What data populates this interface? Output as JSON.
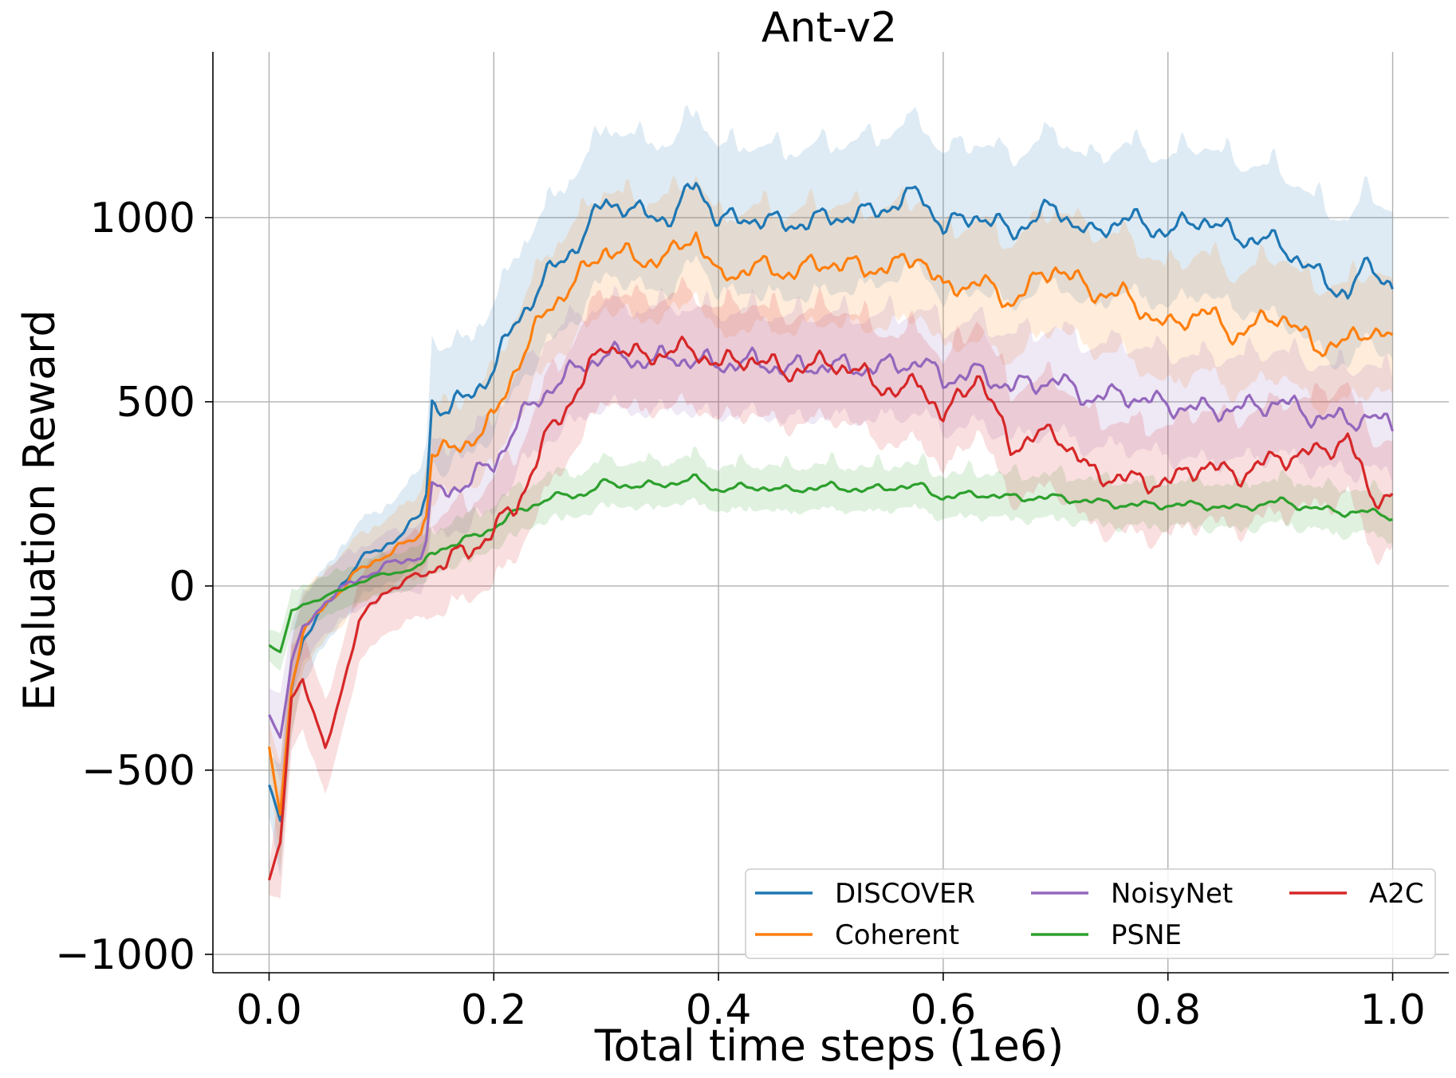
{
  "chart_data": {
    "type": "line",
    "title": "Ant-v2",
    "xlabel": "Total time steps (1e6)",
    "ylabel": "Evaluation Reward",
    "xlim": [
      -0.05,
      1.05
    ],
    "ylim": [
      -1050,
      1450
    ],
    "x_ticks": [
      0.0,
      0.2,
      0.4,
      0.6,
      0.8,
      1.0
    ],
    "x_tick_labels": [
      "0.0",
      "0.2",
      "0.4",
      "0.6",
      "0.8",
      "1.0"
    ],
    "y_ticks": [
      -1000,
      -500,
      0,
      500,
      1000
    ],
    "y_tick_labels": [
      "−1000",
      "−500",
      "0",
      "500",
      "1000"
    ],
    "grid": true,
    "legend_position": "lower-right",
    "legend_columns": 3,
    "x": [
      0.0,
      0.01,
      0.02,
      0.03,
      0.05,
      0.08,
      0.1,
      0.12,
      0.135,
      0.14,
      0.145,
      0.16,
      0.18,
      0.2,
      0.22,
      0.25,
      0.28,
      0.3,
      0.33,
      0.36,
      0.38,
      0.4,
      0.43,
      0.46,
      0.5,
      0.53,
      0.56,
      0.58,
      0.6,
      0.63,
      0.66,
      0.7,
      0.73,
      0.76,
      0.8,
      0.83,
      0.86,
      0.9,
      0.93,
      0.96,
      0.98,
      1.0
    ],
    "series": [
      {
        "name": "DISCOVER",
        "color": "#1f77b4",
        "values": [
          -540,
          -640,
          -280,
          -140,
          -60,
          70,
          100,
          150,
          190,
          260,
          500,
          480,
          520,
          590,
          720,
          850,
          950,
          1050,
          1010,
          1000,
          1100,
          990,
          1000,
          980,
          1000,
          1010,
          1040,
          1070,
          970,
          1010,
          960,
          1030,
          950,
          1000,
          960,
          1000,
          950,
          930,
          850,
          790,
          880,
          810
        ],
        "band": [
          80,
          150,
          130,
          110,
          100,
          100,
          100,
          110,
          120,
          140,
          160,
          150,
          150,
          160,
          170,
          180,
          190,
          190,
          190,
          190,
          190,
          190,
          190,
          190,
          190,
          190,
          190,
          190,
          190,
          190,
          190,
          190,
          190,
          190,
          190,
          190,
          190,
          190,
          190,
          190,
          190,
          190
        ]
      },
      {
        "name": "Coherent",
        "color": "#ff7f0e",
        "values": [
          -440,
          -620,
          -270,
          -130,
          -50,
          40,
          80,
          110,
          140,
          210,
          370,
          360,
          400,
          450,
          600,
          760,
          850,
          920,
          880,
          900,
          960,
          830,
          870,
          850,
          880,
          860,
          870,
          900,
          800,
          830,
          770,
          870,
          800,
          790,
          700,
          750,
          680,
          740,
          650,
          660,
          700,
          670
        ],
        "band": [
          60,
          140,
          120,
          100,
          90,
          90,
          90,
          100,
          110,
          130,
          120,
          110,
          110,
          120,
          130,
          140,
          150,
          150,
          150,
          150,
          150,
          150,
          150,
          150,
          150,
          150,
          150,
          150,
          150,
          150,
          150,
          150,
          150,
          150,
          150,
          150,
          150,
          150,
          150,
          150,
          150,
          150
        ]
      },
      {
        "name": "NoisyNet",
        "color": "#9467bd",
        "values": [
          -350,
          -410,
          -210,
          -120,
          -40,
          20,
          50,
          70,
          80,
          130,
          250,
          260,
          290,
          330,
          440,
          540,
          600,
          630,
          610,
          620,
          610,
          600,
          610,
          590,
          600,
          590,
          600,
          610,
          560,
          580,
          540,
          560,
          510,
          520,
          490,
          480,
          480,
          500,
          460,
          450,
          460,
          430
        ],
        "band": [
          70,
          120,
          100,
          90,
          80,
          80,
          80,
          80,
          90,
          100,
          110,
          110,
          110,
          120,
          120,
          130,
          130,
          130,
          130,
          130,
          130,
          130,
          130,
          130,
          130,
          130,
          130,
          130,
          130,
          130,
          130,
          130,
          130,
          130,
          130,
          130,
          130,
          130,
          130,
          130,
          130,
          130
        ]
      },
      {
        "name": "PSNE",
        "color": "#2ca02c",
        "values": [
          -160,
          -180,
          -70,
          -50,
          -30,
          10,
          30,
          40,
          55,
          70,
          90,
          110,
          130,
          160,
          200,
          240,
          250,
          280,
          270,
          280,
          290,
          260,
          270,
          260,
          270,
          260,
          270,
          270,
          240,
          250,
          240,
          240,
          230,
          220,
          220,
          220,
          210,
          230,
          210,
          200,
          200,
          190
        ],
        "band": [
          40,
          50,
          50,
          50,
          50,
          50,
          50,
          50,
          50,
          50,
          50,
          50,
          50,
          50,
          50,
          50,
          50,
          50,
          50,
          50,
          50,
          50,
          50,
          50,
          50,
          50,
          50,
          50,
          50,
          50,
          50,
          50,
          50,
          50,
          50,
          50,
          50,
          50,
          50,
          50,
          50,
          50
        ]
      },
      {
        "name": "A2C",
        "color": "#d62728",
        "values": [
          -800,
          -700,
          -300,
          -250,
          -450,
          -100,
          -20,
          10,
          30,
          40,
          50,
          70,
          100,
          150,
          220,
          420,
          560,
          660,
          620,
          640,
          640,
          600,
          620,
          580,
          610,
          570,
          520,
          560,
          450,
          580,
          380,
          420,
          310,
          290,
          280,
          330,
          300,
          350,
          360,
          400,
          250,
          240
        ],
        "band": [
          40,
          150,
          140,
          130,
          120,
          110,
          110,
          110,
          110,
          110,
          120,
          120,
          120,
          130,
          130,
          140,
          140,
          140,
          140,
          140,
          140,
          140,
          140,
          140,
          140,
          140,
          140,
          140,
          140,
          140,
          140,
          140,
          140,
          140,
          140,
          140,
          140,
          140,
          140,
          140,
          140,
          140
        ]
      }
    ]
  }
}
